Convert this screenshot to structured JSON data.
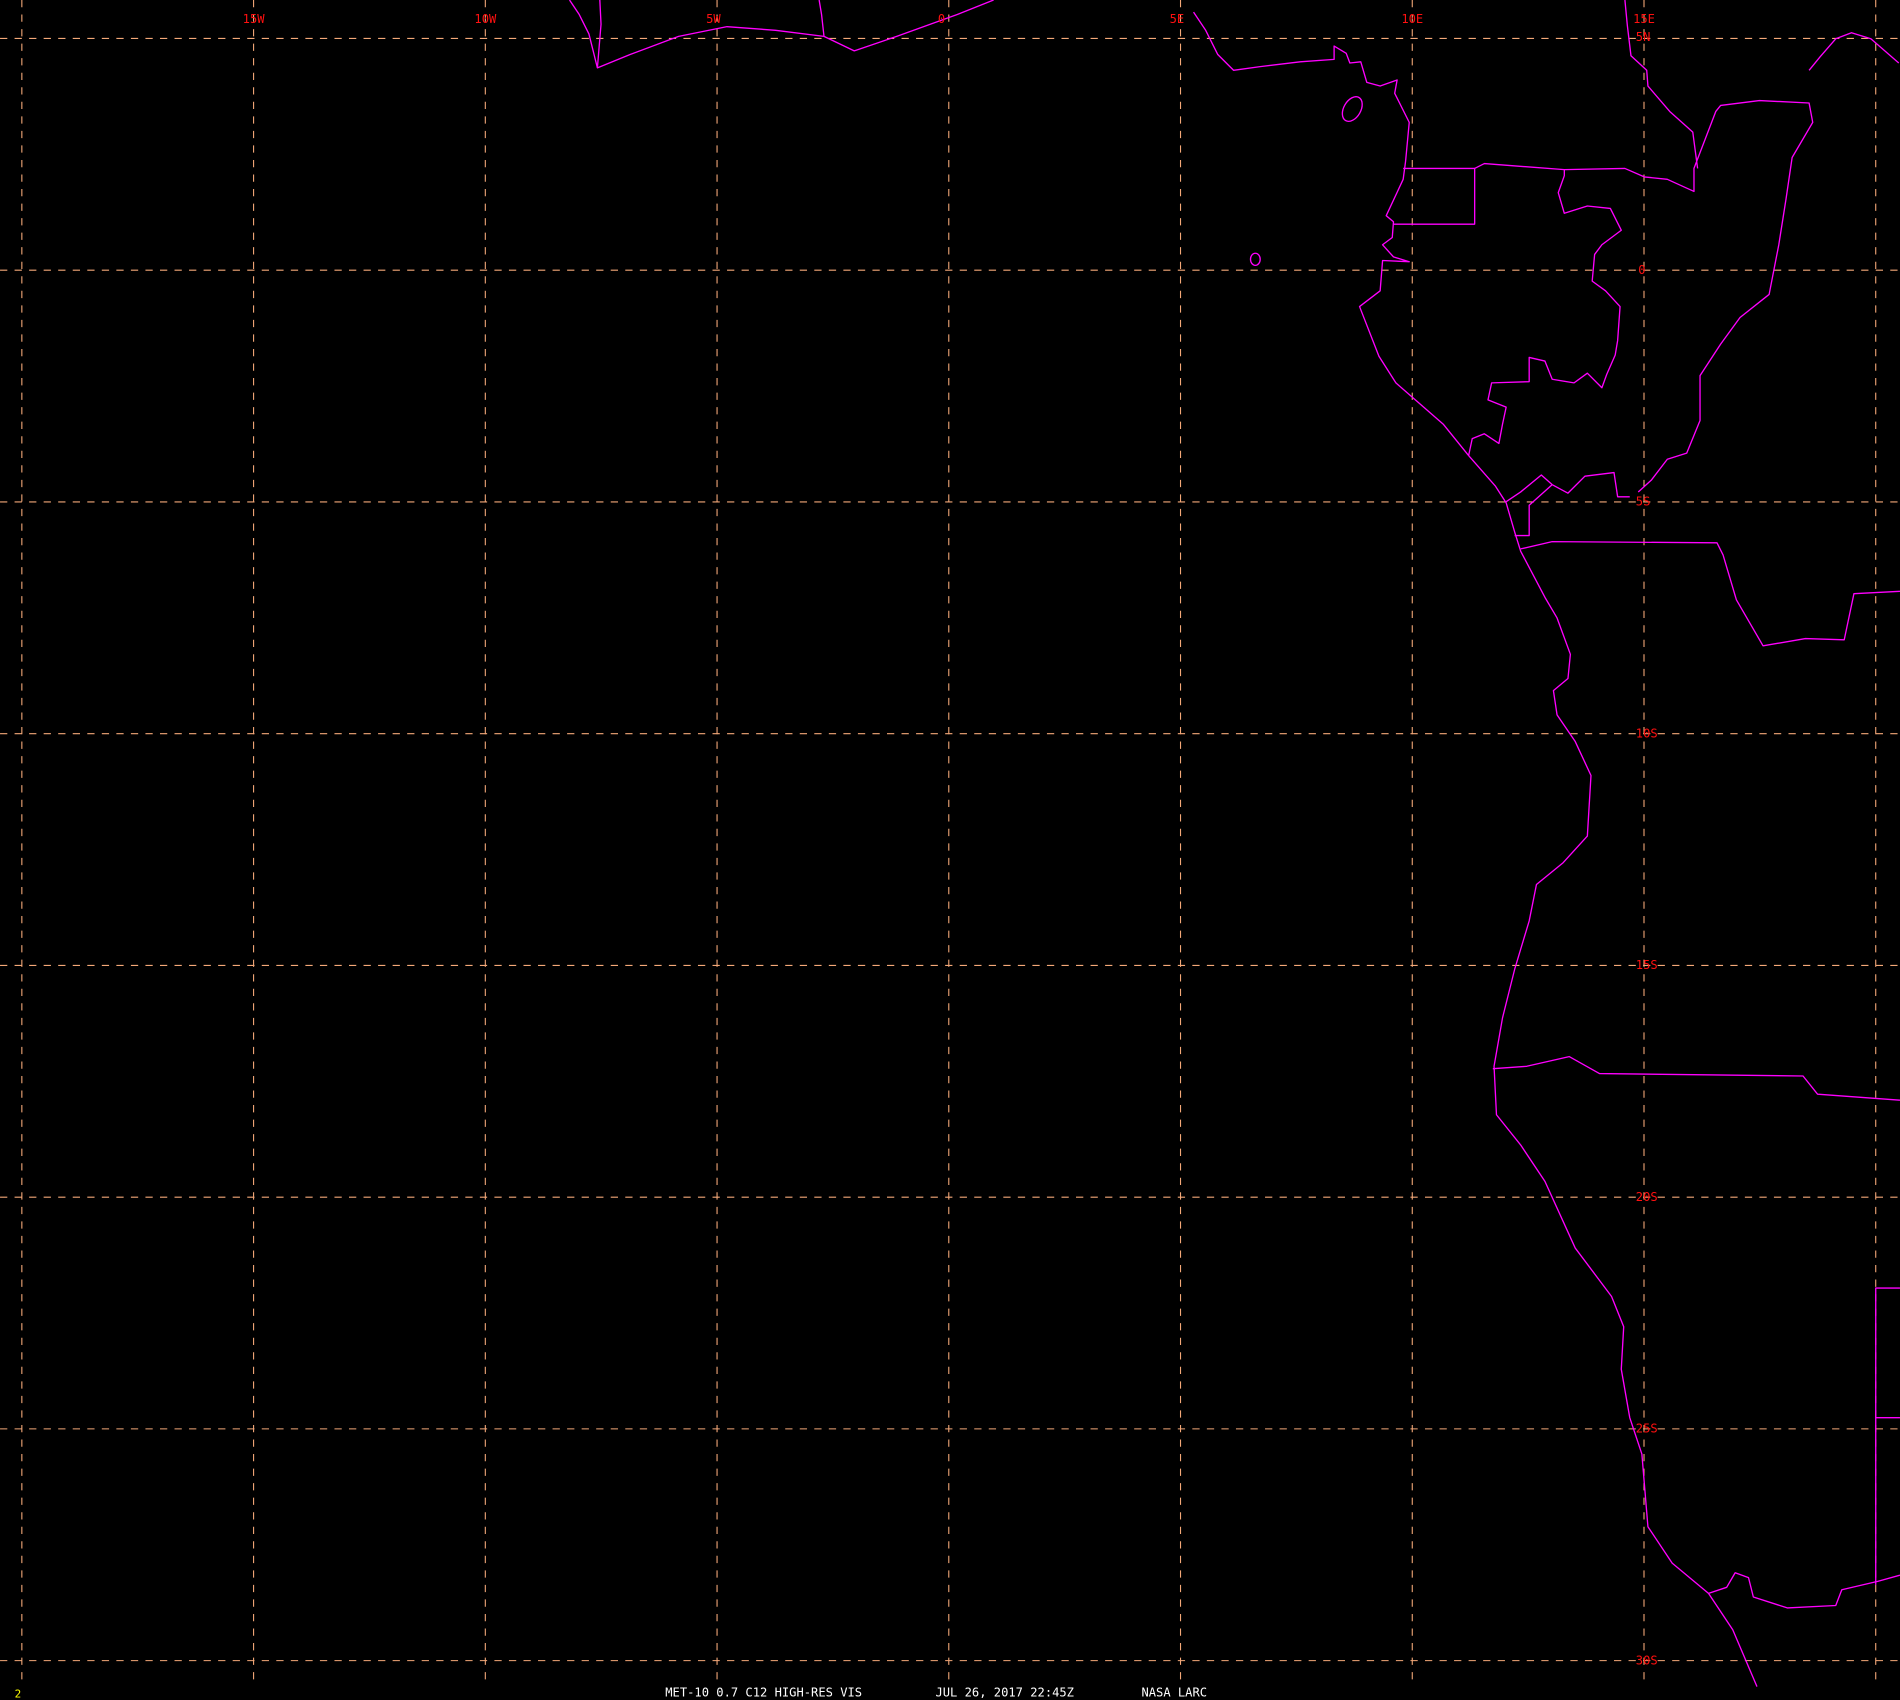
{
  "map": {
    "longitude_labels": [
      "15W",
      "10W",
      "5W",
      "0",
      "5E",
      "10E",
      "15E"
    ],
    "latitude_labels": [
      "5N",
      "0",
      "5S",
      "10S",
      "15S",
      "20S",
      "25S",
      "30S"
    ],
    "grid_longitudes": [
      -20,
      -15,
      -10,
      -5,
      0,
      5,
      10,
      15,
      20
    ],
    "grid_latitudes": [
      5,
      0,
      -5,
      -10,
      -15,
      -20,
      -25,
      -30
    ],
    "colors": {
      "background": "#000000",
      "grid": "#f4a878",
      "labels": "#ff1010",
      "coastlines": "#ff00ff",
      "caption": "#ffffff",
      "frame_number": "#ffff00"
    }
  },
  "caption": {
    "product": "MET-10 0.7 C12 HIGH-RES VIS",
    "datetime": "JUL 26, 2017 22:45Z",
    "source": "NASA LARC"
  },
  "frame_number": "2"
}
